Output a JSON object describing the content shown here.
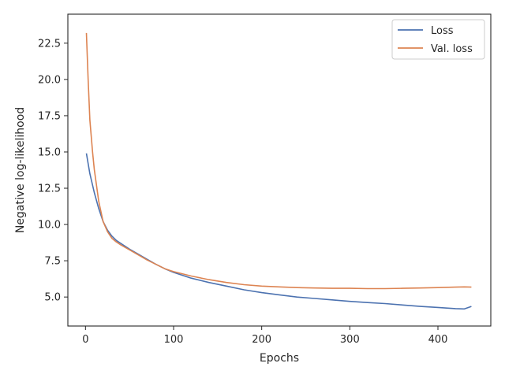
{
  "chart_data": {
    "type": "line",
    "title": "",
    "xlabel": "Epochs",
    "ylabel": "Negative log-likelihood",
    "xlim": [
      -20,
      460
    ],
    "ylim": [
      3.0,
      24.5
    ],
    "xticks": [
      0,
      100,
      200,
      300,
      400
    ],
    "xtick_labels": [
      "0",
      "100",
      "200",
      "300",
      "400"
    ],
    "yticks": [
      5.0,
      7.5,
      10.0,
      12.5,
      15.0,
      17.5,
      20.0,
      22.5
    ],
    "ytick_labels": [
      "5.0",
      "7.5",
      "10.0",
      "12.5",
      "15.0",
      "17.5",
      "20.0",
      "22.5"
    ],
    "grid": false,
    "legend_position": "top-right",
    "series": [
      {
        "name": "Loss",
        "color": "#4c72b0",
        "x": [
          1,
          5,
          10,
          15,
          20,
          25,
          30,
          35,
          40,
          50,
          60,
          70,
          80,
          90,
          100,
          120,
          140,
          160,
          180,
          200,
          220,
          240,
          260,
          280,
          300,
          320,
          340,
          360,
          380,
          400,
          420,
          430,
          438
        ],
        "y": [
          14.9,
          13.5,
          12.2,
          11.1,
          10.2,
          9.6,
          9.2,
          8.9,
          8.7,
          8.3,
          7.95,
          7.6,
          7.25,
          6.95,
          6.7,
          6.3,
          6.0,
          5.75,
          5.5,
          5.3,
          5.15,
          5.0,
          4.9,
          4.8,
          4.7,
          4.62,
          4.55,
          4.45,
          4.35,
          4.28,
          4.2,
          4.18,
          4.35
        ]
      },
      {
        "name": "Val. loss",
        "color": "#dd8452",
        "x": [
          1,
          3,
          5,
          8,
          10,
          15,
          20,
          25,
          30,
          35,
          40,
          50,
          60,
          70,
          80,
          90,
          100,
          120,
          140,
          160,
          180,
          200,
          220,
          240,
          260,
          280,
          300,
          320,
          340,
          360,
          380,
          400,
          420,
          430,
          438
        ],
        "y": [
          23.2,
          20.0,
          17.2,
          15.0,
          13.8,
          11.6,
          10.2,
          9.5,
          9.05,
          8.8,
          8.6,
          8.25,
          7.9,
          7.55,
          7.25,
          6.95,
          6.75,
          6.45,
          6.2,
          6.0,
          5.85,
          5.75,
          5.7,
          5.65,
          5.62,
          5.6,
          5.6,
          5.58,
          5.58,
          5.6,
          5.62,
          5.65,
          5.68,
          5.7,
          5.68
        ]
      }
    ]
  }
}
